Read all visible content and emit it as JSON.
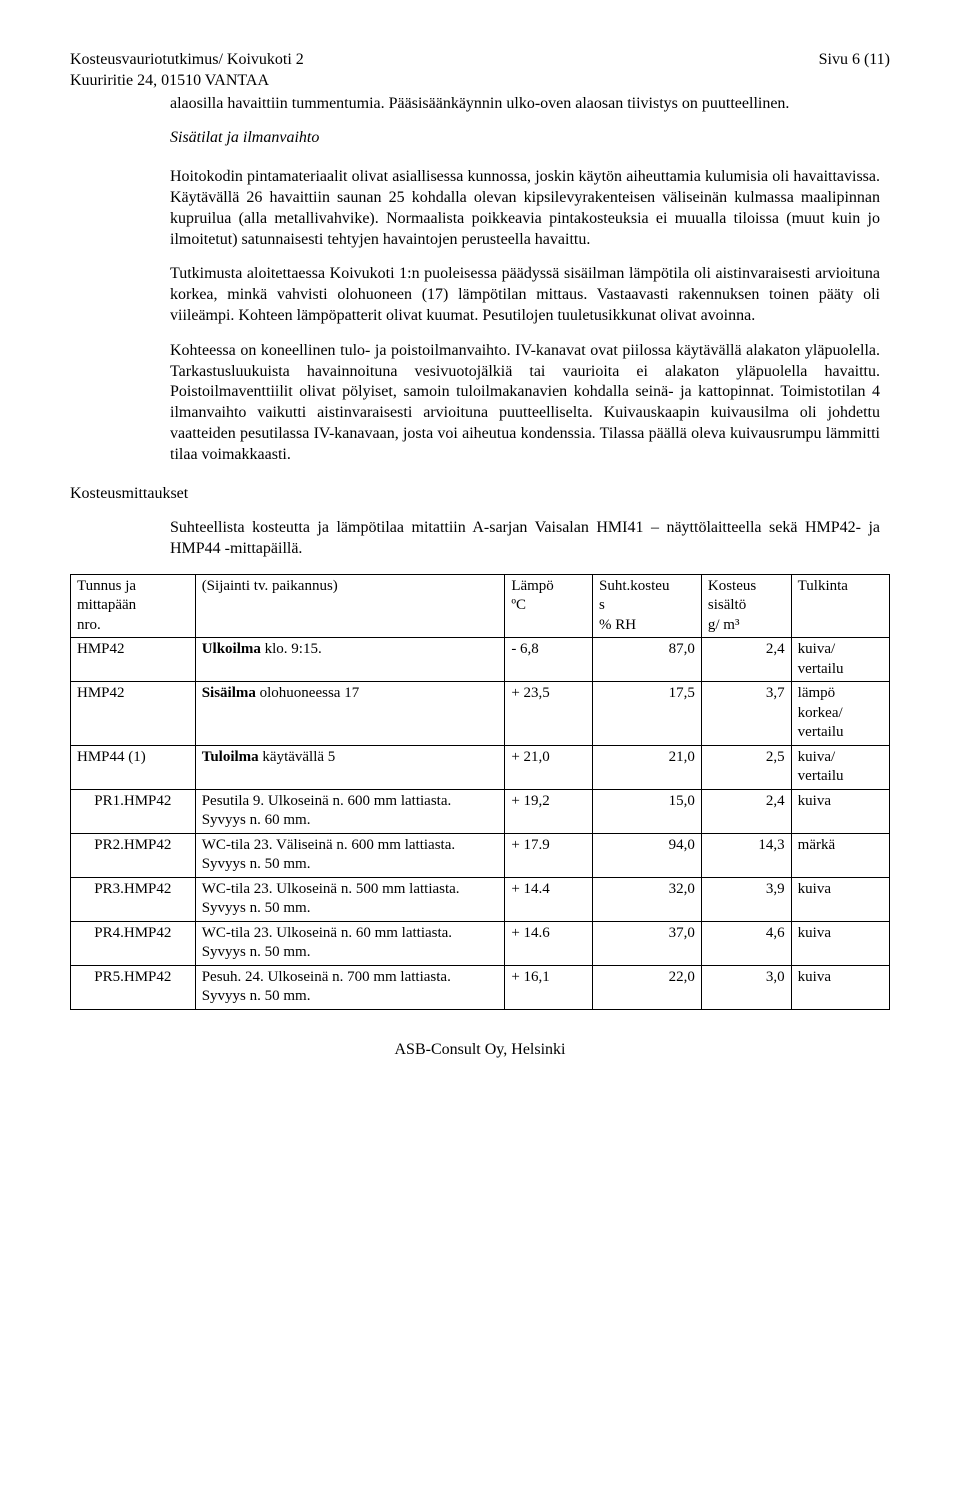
{
  "header": {
    "title_line1": "Kosteusvauriotutkimus/ Koivukoti 2",
    "title_line2": "Kuuriritie 24, 01510 VANTAA",
    "page_label": "Sivu 6 (11)"
  },
  "intro_paragraph": "alaosilla havaittiin tummentumia. Pääsisäänkäynnin ulko-oven alaosan tiivistys on puutteellinen.",
  "section1_heading": "Sisätilat ja ilmanvaihto",
  "section1_paragraphs": [
    "Hoitokodin pintamateriaalit olivat asiallisessa kunnossa, joskin käytön aiheuttamia kulumisia oli havaittavissa. Käytävällä 26 havaittiin saunan 25 kohdalla olevan kipsilevyrakenteisen väliseinän kulmassa maalipinnan kupruilua (alla metallivahvike). Normaalista poikkeavia pintakosteuksia ei muualla tiloissa (muut kuin jo ilmoitetut) satunnaisesti tehtyjen havaintojen perusteella havaittu.",
    "Tutkimusta aloitettaessa Koivukoti 1:n puoleisessa päädyssä sisäilman lämpötila oli aistinvaraisesti arvioituna korkea, minkä vahvisti olohuoneen (17) lämpötilan mittaus. Vastaavasti rakennuksen toinen pääty oli viileämpi. Kohteen lämpöpatterit olivat kuumat. Pesutilojen tuuletusikkunat olivat avoinna.",
    "Kohteessa on koneellinen tulo- ja poistoilmanvaihto. IV-kanavat ovat piilossa käytävällä alakaton yläpuolella. Tarkastusluukuista havainnoituna vesivuotojälkiä tai vaurioita ei alakaton yläpuolella havaittu. Poistoilmaventtiilit olivat pölyiset, samoin tuloilmakanavien kohdalla seinä- ja kattopinnat. Toimistotilan 4 ilmanvaihto vaikutti aistinvaraisesti arvioituna puutteelliselta. Kuivauskaapin kuivausilma oli johdettu vaatteiden pesutilassa IV-kanavaan, josta voi aiheutua kondenssia. Tilassa päällä oleva kuivausrumpu lämmitti tilaa voimakkaasti."
  ],
  "section2_heading": "Kosteusmittaukset",
  "section2_intro": "Suhteellista kosteutta ja lämpötilaa mitattiin A-sarjan Vaisalan HMI41 – näyttölaitteella sekä HMP42- ja HMP44 -mittapäillä.",
  "table": {
    "head": {
      "c0a": "Tunnus ja",
      "c0b": "mittapään",
      "c0c": "nro.",
      "c1": "(Sijainti tv. paikannus)",
      "c2a": "Lämpö",
      "c2b": "ºC",
      "c3a": "Suht.kosteu",
      "c3b": "s",
      "c3c": "% RH",
      "c4a": "Kosteus",
      "c4b": "sisältö",
      "c4c": "g/ m³",
      "c5": "Tulkinta"
    },
    "rows": [
      {
        "id": "HMP42",
        "loc_b": "Ulkoilma",
        "loc_r": " klo. 9:15.",
        "temp": "- 6,8",
        "rh": "87,0",
        "g": "2,4",
        "int": "kuiva/ vertailu"
      },
      {
        "id": "HMP42",
        "loc_b": "Sisäilma",
        "loc_r": " olohuoneessa 17",
        "temp": "+ 23,5",
        "rh": "17,5",
        "g": "3,7",
        "int": "lämpö korkea/ vertailu"
      },
      {
        "id": "HMP44 (1)",
        "loc_b": "Tuloilma",
        "loc_r": " käytävällä 5",
        "temp": "+ 21,0",
        "rh": "21,0",
        "g": "2,5",
        "int": "kuiva/ vertailu"
      },
      {
        "id": "PR1.HMP42",
        "loc_b": "",
        "loc_r": "Pesutila 9. Ulkoseinä n. 600 mm lattiasta. Syvyys n. 60 mm.",
        "temp": "+ 19,2",
        "rh": "15,0",
        "g": "2,4",
        "int": "kuiva"
      },
      {
        "id": "PR2.HMP42",
        "loc_b": "",
        "loc_r": "WC-tila 23. Väliseinä n. 600 mm lattiasta. Syvyys n. 50 mm.",
        "temp": "+ 17.9",
        "rh": "94,0",
        "g": "14,3",
        "int": "märkä"
      },
      {
        "id": "PR3.HMP42",
        "loc_b": "",
        "loc_r": "WC-tila 23. Ulkoseinä n. 500 mm lattiasta. Syvyys n. 50 mm.",
        "temp": "+ 14.4",
        "rh": "32,0",
        "g": "3,9",
        "int": "kuiva"
      },
      {
        "id": "PR4.HMP42",
        "loc_b": "",
        "loc_r": "WC-tila 23. Ulkoseinä n. 60 mm lattiasta. Syvyys n. 50 mm.",
        "temp": "+ 14.6",
        "rh": "37,0",
        "g": "4,6",
        "int": "kuiva"
      },
      {
        "id": "PR5.HMP42",
        "loc_b": "",
        "loc_r": "Pesuh. 24. Ulkoseinä n. 700 mm lattiasta. Syvyys n. 50 mm.",
        "temp": "+ 16,1",
        "rh": "22,0",
        "g": "3,0",
        "int": "kuiva"
      }
    ]
  },
  "footer": "ASB-Consult Oy, Helsinki"
}
